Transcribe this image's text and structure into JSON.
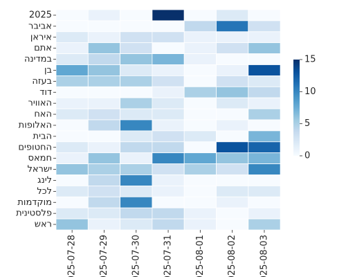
{
  "chart_data": {
    "type": "heatmap",
    "title": "",
    "xlabel": "",
    "ylabel": "",
    "x_categories": [
      "2025-07-28",
      "2025-07-29",
      "2025-07-30",
      "2025-07-31",
      "2025-08-01",
      "2025-08-02",
      "2025-08-03"
    ],
    "y_categories": [
      "2025",
      "אביבר",
      "איראן",
      "אתם",
      "במדינה",
      "בן",
      "בעזה",
      "דוד",
      "האוויר",
      "האח",
      "האלופות",
      "הבית",
      "החטופים",
      "חמאס",
      "ישראל",
      "לינג",
      "לכל",
      "מוקדמות",
      "פלסטינית",
      "ראש"
    ],
    "values": [
      [
        0,
        1,
        0,
        15,
        0,
        2,
        0
      ],
      [
        0,
        0,
        0,
        0,
        4,
        11,
        3
      ],
      [
        2,
        1,
        3,
        3,
        1,
        1,
        1
      ],
      [
        1,
        6,
        3,
        0,
        1,
        3,
        6
      ],
      [
        2,
        4,
        6,
        7,
        1,
        0,
        0
      ],
      [
        8,
        6,
        2,
        1,
        0,
        1,
        13
      ],
      [
        5,
        5,
        5,
        3,
        0,
        3,
        2
      ],
      [
        0,
        0,
        0,
        1,
        5,
        6,
        4
      ],
      [
        1,
        1,
        5,
        2,
        0,
        2,
        1
      ],
      [
        2,
        3,
        2,
        2,
        0,
        0,
        5
      ],
      [
        0,
        4,
        10,
        1,
        0,
        1,
        0
      ],
      [
        0,
        0,
        2,
        3,
        2,
        0,
        7
      ],
      [
        2,
        1,
        4,
        4,
        0,
        13,
        12
      ],
      [
        1,
        6,
        1,
        10,
        8,
        6,
        7
      ],
      [
        6,
        5,
        5,
        3,
        5,
        3,
        10
      ],
      [
        0,
        4,
        10,
        1,
        0,
        0,
        0
      ],
      [
        2,
        3,
        2,
        1,
        0,
        2,
        2
      ],
      [
        0,
        4,
        10,
        0,
        0,
        1,
        0
      ],
      [
        2,
        2,
        4,
        4,
        1,
        0,
        1
      ],
      [
        6,
        1,
        2,
        4,
        1,
        0,
        5
      ]
    ],
    "colorbar": {
      "min": 0,
      "max": 15,
      "ticks": [
        0,
        5,
        10,
        15
      ]
    },
    "colorscale": [
      "#f7fbff",
      "#deebf7",
      "#c6dbef",
      "#9ecae1",
      "#6baed6",
      "#4292c6",
      "#2171b5",
      "#08519c",
      "#08306b"
    ],
    "grid": false,
    "cell_border_color": "#ffffff"
  }
}
